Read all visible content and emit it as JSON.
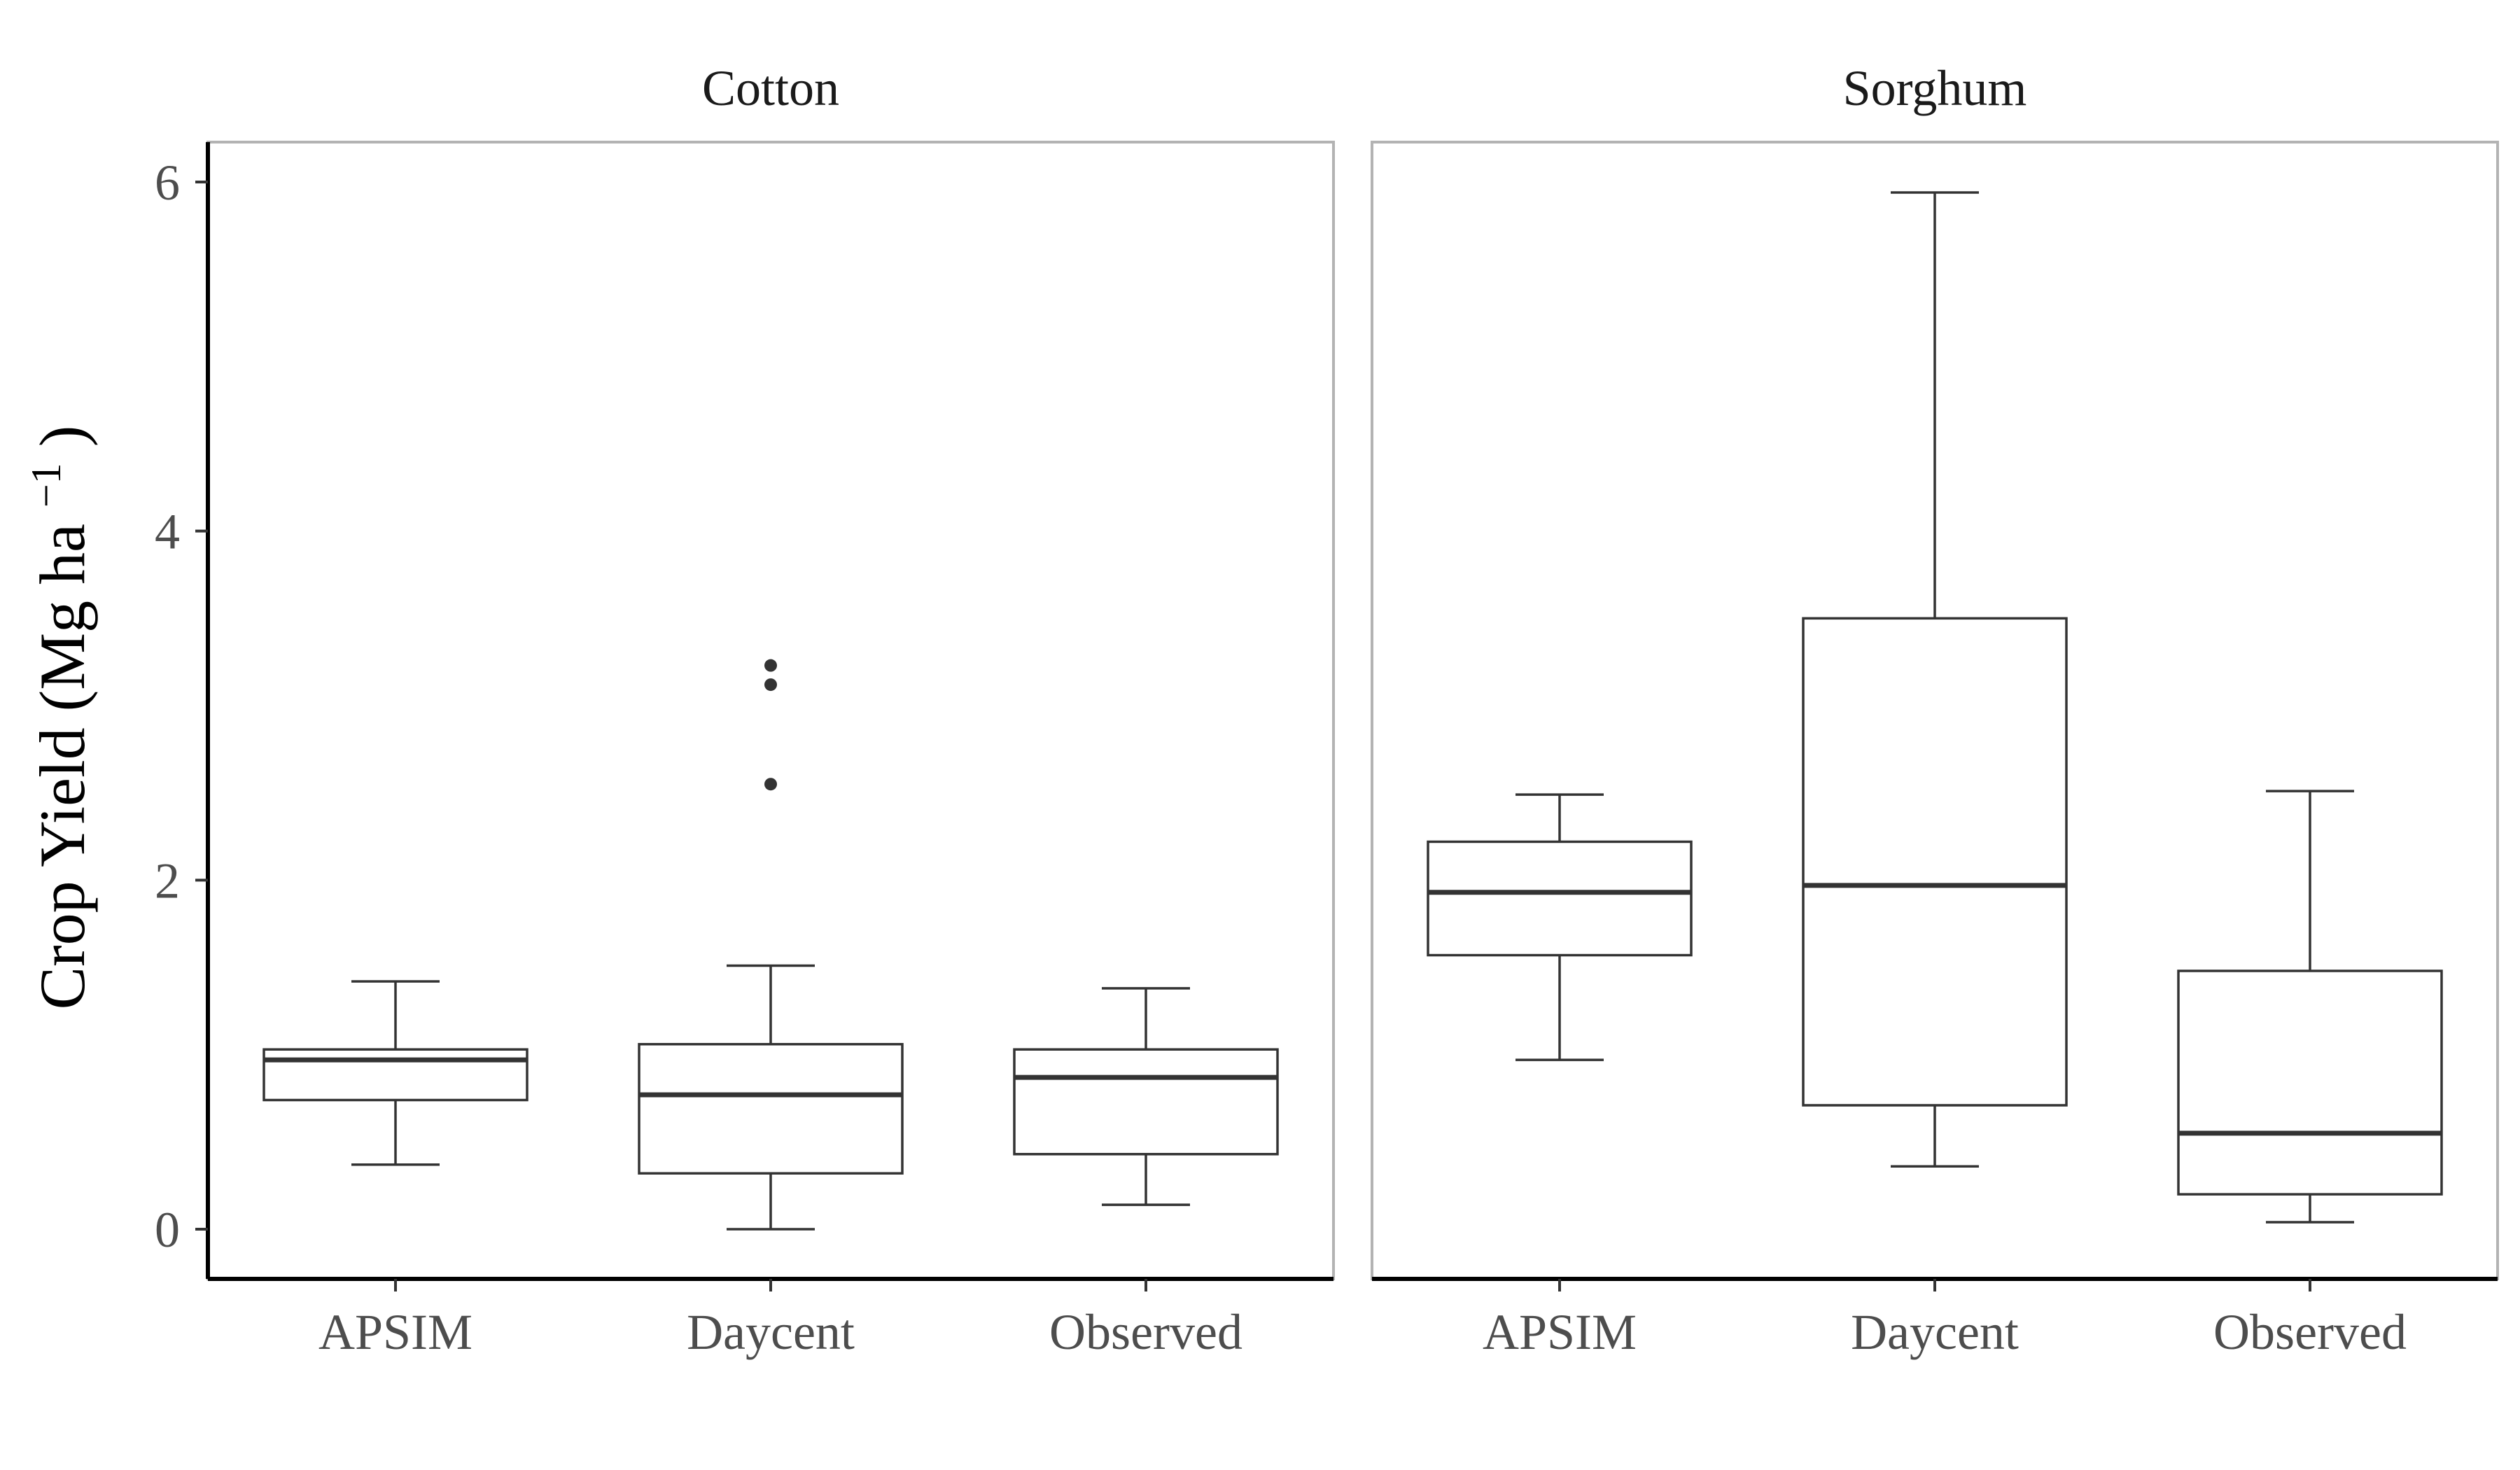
{
  "chart_data": {
    "type": "boxplot",
    "ylabel": {
      "main": "Crop Yield (Mg ha",
      "superscript": "−1",
      "close": ")"
    },
    "ylim": [
      -0.3,
      6.25
    ],
    "yticks": [
      0,
      2,
      4,
      6
    ],
    "categories": [
      "APSIM",
      "Daycent",
      "Observed"
    ],
    "grid": false,
    "colors": {
      "box_line": "#333333",
      "frame": "#b3b3b3",
      "axis": "#000000"
    },
    "panels": [
      {
        "title": "Cotton",
        "boxes": [
          {
            "category": "APSIM",
            "whisker_low": 0.37,
            "q1": 0.74,
            "median": 0.97,
            "q3": 1.03,
            "whisker_high": 1.42,
            "outliers": []
          },
          {
            "category": "Daycent",
            "whisker_low": 0.0,
            "q1": 0.32,
            "median": 0.77,
            "q3": 1.06,
            "whisker_high": 1.51,
            "outliers": [
              2.55,
              3.12,
              3.23
            ]
          },
          {
            "category": "Observed",
            "whisker_low": 0.14,
            "q1": 0.43,
            "median": 0.87,
            "q3": 1.03,
            "whisker_high": 1.38,
            "outliers": []
          }
        ]
      },
      {
        "title": "Sorghum",
        "boxes": [
          {
            "category": "APSIM",
            "whisker_low": 0.97,
            "q1": 1.57,
            "median": 1.93,
            "q3": 2.22,
            "whisker_high": 2.49,
            "outliers": []
          },
          {
            "category": "Daycent",
            "whisker_low": 0.36,
            "q1": 0.71,
            "median": 1.97,
            "q3": 3.5,
            "whisker_high": 5.94,
            "outliers": []
          },
          {
            "category": "Observed",
            "whisker_low": 0.04,
            "q1": 0.2,
            "median": 0.55,
            "q3": 1.48,
            "whisker_high": 2.51,
            "outliers": []
          }
        ]
      }
    ]
  }
}
